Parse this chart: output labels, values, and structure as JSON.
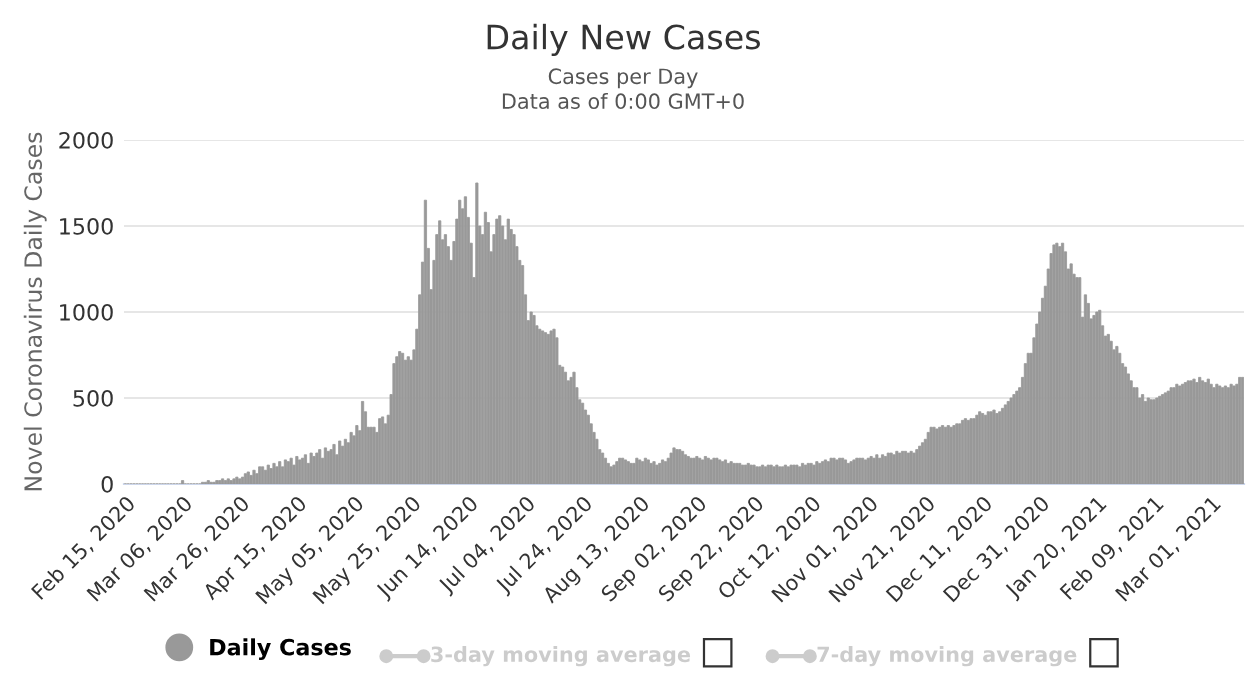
{
  "chart_data": {
    "type": "bar",
    "title": "Daily New Cases",
    "subtitle": "Cases per Day\nData as of 0:00 GMT+0",
    "ylabel": "Novel Coronavirus Daily Cases",
    "categories": [
      "Feb 15, 2020",
      null,
      null,
      null,
      null,
      null,
      null,
      null,
      null,
      null,
      null,
      null,
      null,
      null,
      null,
      null,
      null,
      null,
      null,
      null,
      "Mar 06, 2020",
      null,
      null,
      null,
      null,
      null,
      null,
      null,
      null,
      null,
      null,
      null,
      null,
      null,
      null,
      null,
      null,
      null,
      null,
      null,
      "Mar 26, 2020",
      null,
      null,
      null,
      null,
      null,
      null,
      null,
      null,
      null,
      null,
      null,
      null,
      null,
      null,
      null,
      null,
      null,
      null,
      null,
      "Apr 15, 2020",
      null,
      null,
      null,
      null,
      null,
      null,
      null,
      null,
      null,
      null,
      null,
      null,
      null,
      null,
      null,
      null,
      null,
      null,
      null,
      "May 05, 2020",
      null,
      null,
      null,
      null,
      null,
      null,
      null,
      null,
      null,
      null,
      null,
      null,
      null,
      null,
      null,
      null,
      null,
      null,
      null,
      "May 25, 2020",
      null,
      null,
      null,
      null,
      null,
      null,
      null,
      null,
      null,
      null,
      null,
      null,
      null,
      null,
      null,
      null,
      null,
      null,
      null,
      "Jun 14, 2020",
      null,
      null,
      null,
      null,
      null,
      null,
      null,
      null,
      null,
      null,
      null,
      null,
      null,
      null,
      null,
      null,
      null,
      null,
      null,
      "Jul 04, 2020",
      null,
      null,
      null,
      null,
      null,
      null,
      null,
      null,
      null,
      null,
      null,
      null,
      null,
      null,
      null,
      null,
      null,
      null,
      null,
      "Jul 24, 2020",
      null,
      null,
      null,
      null,
      null,
      null,
      null,
      null,
      null,
      null,
      null,
      null,
      null,
      null,
      null,
      null,
      null,
      null,
      null,
      "Aug 13, 2020",
      null,
      null,
      null,
      null,
      null,
      null,
      null,
      null,
      null,
      null,
      null,
      null,
      null,
      null,
      null,
      null,
      null,
      null,
      null,
      "Sep 02, 2020",
      null,
      null,
      null,
      null,
      null,
      null,
      null,
      null,
      null,
      null,
      null,
      null,
      null,
      null,
      null,
      null,
      null,
      null,
      null,
      "Sep 22, 2020",
      null,
      null,
      null,
      null,
      null,
      null,
      null,
      null,
      null,
      null,
      null,
      null,
      null,
      null,
      null,
      null,
      null,
      null,
      null,
      "Oct 12, 2020",
      null,
      null,
      null,
      null,
      null,
      null,
      null,
      null,
      null,
      null,
      null,
      null,
      null,
      null,
      null,
      null,
      null,
      null,
      null,
      "Nov 01, 2020",
      null,
      null,
      null,
      null,
      null,
      null,
      null,
      null,
      null,
      null,
      null,
      null,
      null,
      null,
      null,
      null,
      null,
      null,
      null,
      "Nov 21, 2020",
      null,
      null,
      null,
      null,
      null,
      null,
      null,
      null,
      null,
      null,
      null,
      null,
      null,
      null,
      null,
      null,
      null,
      null,
      null,
      "Dec 11, 2020",
      null,
      null,
      null,
      null,
      null,
      null,
      null,
      null,
      null,
      null,
      null,
      null,
      null,
      null,
      null,
      null,
      null,
      null,
      null,
      "Dec 31, 2020",
      null,
      null,
      null,
      null,
      null,
      null,
      null,
      null,
      null,
      null,
      null,
      null,
      null,
      null,
      null,
      null,
      null,
      null,
      null,
      "Jan 20, 2021",
      null,
      null,
      null,
      null,
      null,
      null,
      null,
      null,
      null,
      null,
      null,
      null,
      null,
      null,
      null,
      null,
      null,
      null,
      null,
      "Feb 09, 2021",
      null,
      null,
      null,
      null,
      null,
      null,
      null,
      null,
      null,
      null,
      null,
      null,
      null,
      null,
      null,
      null,
      null,
      null,
      null,
      "Mar 01, 2021",
      null,
      null,
      null,
      null,
      null,
      null,
      null,
      null,
      null,
      null,
      null
    ],
    "series": [
      {
        "name": "Daily Cases",
        "color": "#999999",
        "values": [
          0,
          0,
          0,
          0,
          0,
          0,
          0,
          0,
          0,
          0,
          0,
          0,
          0,
          0,
          0,
          0,
          0,
          0,
          0,
          0,
          20,
          0,
          0,
          0,
          0,
          0,
          0,
          10,
          10,
          20,
          10,
          10,
          20,
          20,
          30,
          20,
          30,
          20,
          30,
          40,
          30,
          40,
          60,
          70,
          50,
          80,
          60,
          100,
          100,
          80,
          110,
          90,
          120,
          100,
          130,
          100,
          140,
          130,
          150,
          110,
          160,
          140,
          150,
          170,
          120,
          180,
          160,
          180,
          200,
          150,
          210,
          190,
          200,
          230,
          170,
          250,
          220,
          260,
          240,
          300,
          280,
          340,
          310,
          480,
          420,
          330,
          330,
          330,
          300,
          380,
          390,
          350,
          400,
          520,
          700,
          740,
          770,
          760,
          720,
          740,
          720,
          780,
          900,
          1100,
          1290,
          1650,
          1370,
          1130,
          1300,
          1450,
          1530,
          1420,
          1450,
          1380,
          1300,
          1410,
          1540,
          1650,
          1600,
          1670,
          1550,
          1400,
          1200,
          1750,
          1500,
          1450,
          1580,
          1520,
          1350,
          1450,
          1540,
          1560,
          1500,
          1420,
          1540,
          1480,
          1450,
          1380,
          1300,
          1270,
          1100,
          950,
          1000,
          980,
          920,
          900,
          890,
          880,
          870,
          890,
          900,
          850,
          690,
          680,
          650,
          600,
          620,
          650,
          560,
          490,
          470,
          430,
          400,
          350,
          300,
          260,
          200,
          180,
          150,
          120,
          100,
          110,
          130,
          150,
          150,
          140,
          130,
          120,
          120,
          150,
          140,
          130,
          150,
          140,
          120,
          130,
          110,
          120,
          140,
          130,
          150,
          180,
          210,
          200,
          200,
          190,
          170,
          160,
          150,
          150,
          160,
          150,
          140,
          160,
          150,
          140,
          150,
          150,
          140,
          130,
          140,
          120,
          130,
          120,
          120,
          120,
          110,
          110,
          120,
          110,
          110,
          100,
          100,
          110,
          100,
          110,
          110,
          100,
          110,
          100,
          100,
          110,
          100,
          110,
          110,
          110,
          100,
          120,
          110,
          120,
          120,
          110,
          130,
          120,
          130,
          140,
          130,
          150,
          150,
          140,
          150,
          150,
          140,
          120,
          130,
          140,
          150,
          150,
          150,
          140,
          150,
          160,
          150,
          170,
          150,
          170,
          160,
          180,
          180,
          170,
          190,
          180,
          190,
          190,
          180,
          190,
          180,
          200,
          220,
          240,
          260,
          300,
          330,
          330,
          320,
          330,
          340,
          330,
          340,
          330,
          340,
          350,
          350,
          370,
          380,
          370,
          380,
          380,
          400,
          420,
          410,
          400,
          420,
          420,
          430,
          410,
          420,
          440,
          460,
          480,
          500,
          520,
          540,
          560,
          620,
          700,
          760,
          760,
          850,
          930,
          1000,
          1080,
          1150,
          1250,
          1340,
          1390,
          1400,
          1380,
          1400,
          1350,
          1250,
          1280,
          1220,
          1200,
          1200,
          970,
          1100,
          1050,
          960,
          980,
          1000,
          1010,
          920,
          860,
          870,
          830,
          780,
          800,
          760,
          700,
          680,
          640,
          600,
          560,
          560,
          500,
          520,
          480,
          500,
          490,
          490,
          500,
          510,
          520,
          530,
          540,
          560,
          560,
          580,
          570,
          580,
          590,
          600,
          600,
          610,
          590,
          620,
          600,
          590,
          610,
          580,
          560,
          580,
          570,
          560,
          570,
          560,
          580,
          570,
          580,
          620,
          620
        ]
      }
    ],
    "ylim": [
      0,
      2000
    ],
    "yticks": [
      0,
      500,
      1000,
      1500,
      2000
    ],
    "grid": "y",
    "legend": "bottom",
    "marker": "circle",
    "annotations": [
      "3-day moving average",
      "7-day moving average"
    ]
  }
}
